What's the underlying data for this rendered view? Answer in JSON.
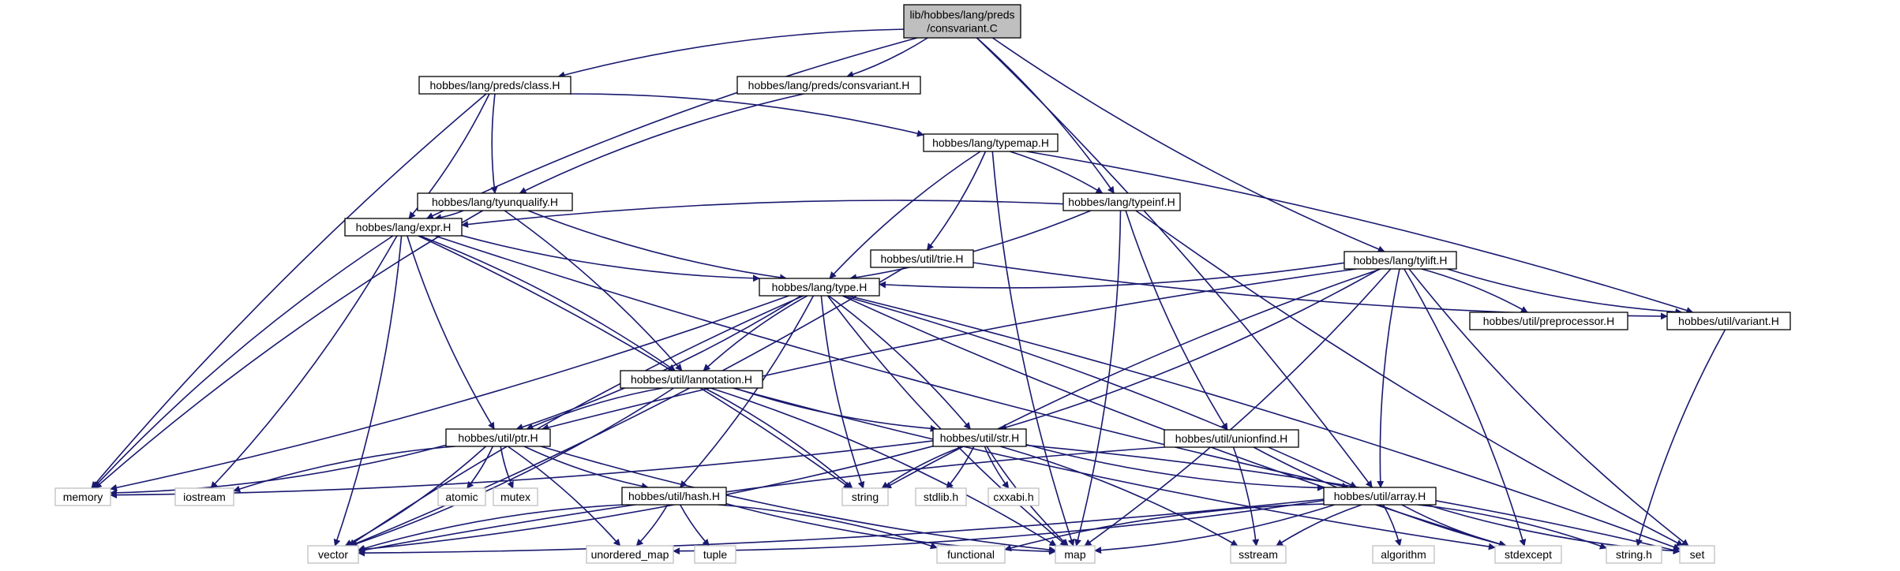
{
  "colors": {
    "edge": "#191970",
    "box_border": "#000000",
    "system_box_border": "#bfbfbf",
    "root_fill": "#bfbfbf"
  },
  "nodes": [
    {
      "id": "root",
      "lines": [
        "lib/hobbes/lang/preds",
        "/consvariant.C"
      ],
      "kind": "root"
    },
    {
      "id": "class",
      "lines": [
        "hobbes/lang/preds/class.H"
      ],
      "kind": "header"
    },
    {
      "id": "consvH",
      "lines": [
        "hobbes/lang/preds/consvariant.H"
      ],
      "kind": "header"
    },
    {
      "id": "typemap",
      "lines": [
        "hobbes/lang/typemap.H"
      ],
      "kind": "header"
    },
    {
      "id": "tyunq",
      "lines": [
        "hobbes/lang/tyunqualify.H"
      ],
      "kind": "header"
    },
    {
      "id": "typeinf",
      "lines": [
        "hobbes/lang/typeinf.H"
      ],
      "kind": "header"
    },
    {
      "id": "expr",
      "lines": [
        "hobbes/lang/expr.H"
      ],
      "kind": "header"
    },
    {
      "id": "trie",
      "lines": [
        "hobbes/util/trie.H"
      ],
      "kind": "header"
    },
    {
      "id": "tylift",
      "lines": [
        "hobbes/lang/tylift.H"
      ],
      "kind": "header"
    },
    {
      "id": "type",
      "lines": [
        "hobbes/lang/type.H"
      ],
      "kind": "header"
    },
    {
      "id": "preproc",
      "lines": [
        "hobbes/util/preprocessor.H"
      ],
      "kind": "header"
    },
    {
      "id": "variant",
      "lines": [
        "hobbes/util/variant.H"
      ],
      "kind": "header"
    },
    {
      "id": "lannot",
      "lines": [
        "hobbes/util/lannotation.H"
      ],
      "kind": "header"
    },
    {
      "id": "ptr",
      "lines": [
        "hobbes/util/ptr.H"
      ],
      "kind": "header"
    },
    {
      "id": "str",
      "lines": [
        "hobbes/util/str.H"
      ],
      "kind": "header"
    },
    {
      "id": "unionfind",
      "lines": [
        "hobbes/util/unionfind.H"
      ],
      "kind": "header"
    },
    {
      "id": "array",
      "lines": [
        "hobbes/util/array.H"
      ],
      "kind": "header"
    },
    {
      "id": "hash",
      "lines": [
        "hobbes/util/hash.H"
      ],
      "kind": "header"
    },
    {
      "id": "memory",
      "lines": [
        "memory"
      ],
      "kind": "system"
    },
    {
      "id": "iostream",
      "lines": [
        "iostream"
      ],
      "kind": "system"
    },
    {
      "id": "atomic",
      "lines": [
        "atomic"
      ],
      "kind": "system"
    },
    {
      "id": "mutex",
      "lines": [
        "mutex"
      ],
      "kind": "system"
    },
    {
      "id": "string",
      "lines": [
        "string"
      ],
      "kind": "system"
    },
    {
      "id": "stdlibh",
      "lines": [
        "stdlib.h"
      ],
      "kind": "system"
    },
    {
      "id": "cxxabi",
      "lines": [
        "cxxabi.h"
      ],
      "kind": "system"
    },
    {
      "id": "vector",
      "lines": [
        "vector"
      ],
      "kind": "system"
    },
    {
      "id": "umap",
      "lines": [
        "unordered_map"
      ],
      "kind": "system"
    },
    {
      "id": "tuple",
      "lines": [
        "tuple"
      ],
      "kind": "system"
    },
    {
      "id": "functional",
      "lines": [
        "functional"
      ],
      "kind": "system"
    },
    {
      "id": "map",
      "lines": [
        "map"
      ],
      "kind": "system"
    },
    {
      "id": "sstream",
      "lines": [
        "sstream"
      ],
      "kind": "system"
    },
    {
      "id": "algorithm",
      "lines": [
        "algorithm"
      ],
      "kind": "system"
    },
    {
      "id": "stdexcept",
      "lines": [
        "stdexcept"
      ],
      "kind": "system"
    },
    {
      "id": "stringh",
      "lines": [
        "string.h"
      ],
      "kind": "system"
    },
    {
      "id": "set",
      "lines": [
        "set"
      ],
      "kind": "system"
    }
  ],
  "edges": [
    [
      "root",
      "class"
    ],
    [
      "root",
      "consvH"
    ],
    [
      "root",
      "expr"
    ],
    [
      "root",
      "typeinf"
    ],
    [
      "root",
      "tylift"
    ],
    [
      "root",
      "array"
    ],
    [
      "class",
      "memory"
    ],
    [
      "class",
      "expr"
    ],
    [
      "class",
      "tyunq"
    ],
    [
      "class",
      "typemap"
    ],
    [
      "consvH",
      "tyunq"
    ],
    [
      "typemap",
      "typeinf"
    ],
    [
      "typemap",
      "type"
    ],
    [
      "typemap",
      "trie"
    ],
    [
      "typemap",
      "map"
    ],
    [
      "typemap",
      "variant"
    ],
    [
      "tyunq",
      "memory"
    ],
    [
      "tyunq",
      "expr"
    ],
    [
      "tyunq",
      "type"
    ],
    [
      "tyunq",
      "lannot"
    ],
    [
      "typeinf",
      "expr"
    ],
    [
      "typeinf",
      "type"
    ],
    [
      "typeinf",
      "unionfind"
    ],
    [
      "typeinf",
      "map"
    ],
    [
      "typeinf",
      "set"
    ],
    [
      "expr",
      "vector"
    ],
    [
      "expr",
      "memory"
    ],
    [
      "expr",
      "iostream"
    ],
    [
      "expr",
      "ptr"
    ],
    [
      "expr",
      "lannot"
    ],
    [
      "expr",
      "type"
    ],
    [
      "expr",
      "string"
    ],
    [
      "expr",
      "array"
    ],
    [
      "trie",
      "vector"
    ],
    [
      "trie",
      "variant"
    ],
    [
      "tylift",
      "type"
    ],
    [
      "tylift",
      "ptr"
    ],
    [
      "tylift",
      "preproc"
    ],
    [
      "tylift",
      "variant"
    ],
    [
      "tylift",
      "str"
    ],
    [
      "tylift",
      "string"
    ],
    [
      "tylift",
      "map"
    ],
    [
      "tylift",
      "array"
    ],
    [
      "tylift",
      "stdexcept"
    ],
    [
      "tylift",
      "set"
    ],
    [
      "type",
      "memory"
    ],
    [
      "type",
      "vector"
    ],
    [
      "type",
      "ptr"
    ],
    [
      "type",
      "lannot"
    ],
    [
      "type",
      "hash"
    ],
    [
      "type",
      "string"
    ],
    [
      "type",
      "str"
    ],
    [
      "type",
      "map"
    ],
    [
      "type",
      "array"
    ],
    [
      "type",
      "stdexcept"
    ],
    [
      "type",
      "set"
    ],
    [
      "variant",
      "stringh"
    ],
    [
      "lannot",
      "vector"
    ],
    [
      "lannot",
      "ptr"
    ],
    [
      "lannot",
      "string"
    ],
    [
      "lannot",
      "str"
    ],
    [
      "lannot",
      "map"
    ],
    [
      "lannot",
      "stdexcept"
    ],
    [
      "ptr",
      "memory"
    ],
    [
      "ptr",
      "iostream"
    ],
    [
      "ptr",
      "atomic"
    ],
    [
      "ptr",
      "mutex"
    ],
    [
      "ptr",
      "vector"
    ],
    [
      "ptr",
      "hash"
    ],
    [
      "ptr",
      "umap"
    ],
    [
      "ptr",
      "map"
    ],
    [
      "str",
      "memory"
    ],
    [
      "str",
      "string"
    ],
    [
      "str",
      "stdlibh"
    ],
    [
      "str",
      "cxxabi"
    ],
    [
      "str",
      "vector"
    ],
    [
      "str",
      "map"
    ],
    [
      "str",
      "sstream"
    ],
    [
      "str",
      "array"
    ],
    [
      "str",
      "set"
    ],
    [
      "unionfind",
      "vector"
    ],
    [
      "unionfind",
      "sstream"
    ],
    [
      "unionfind",
      "stdexcept"
    ],
    [
      "array",
      "vector"
    ],
    [
      "array",
      "functional"
    ],
    [
      "array",
      "map"
    ],
    [
      "array",
      "sstream"
    ],
    [
      "array",
      "algorithm"
    ],
    [
      "array",
      "stdexcept"
    ],
    [
      "array",
      "stringh"
    ],
    [
      "array",
      "set"
    ],
    [
      "array",
      "umap"
    ],
    [
      "hash",
      "vector"
    ],
    [
      "hash",
      "umap"
    ],
    [
      "hash",
      "tuple"
    ],
    [
      "hash",
      "functional"
    ],
    [
      "hash",
      "map"
    ]
  ]
}
